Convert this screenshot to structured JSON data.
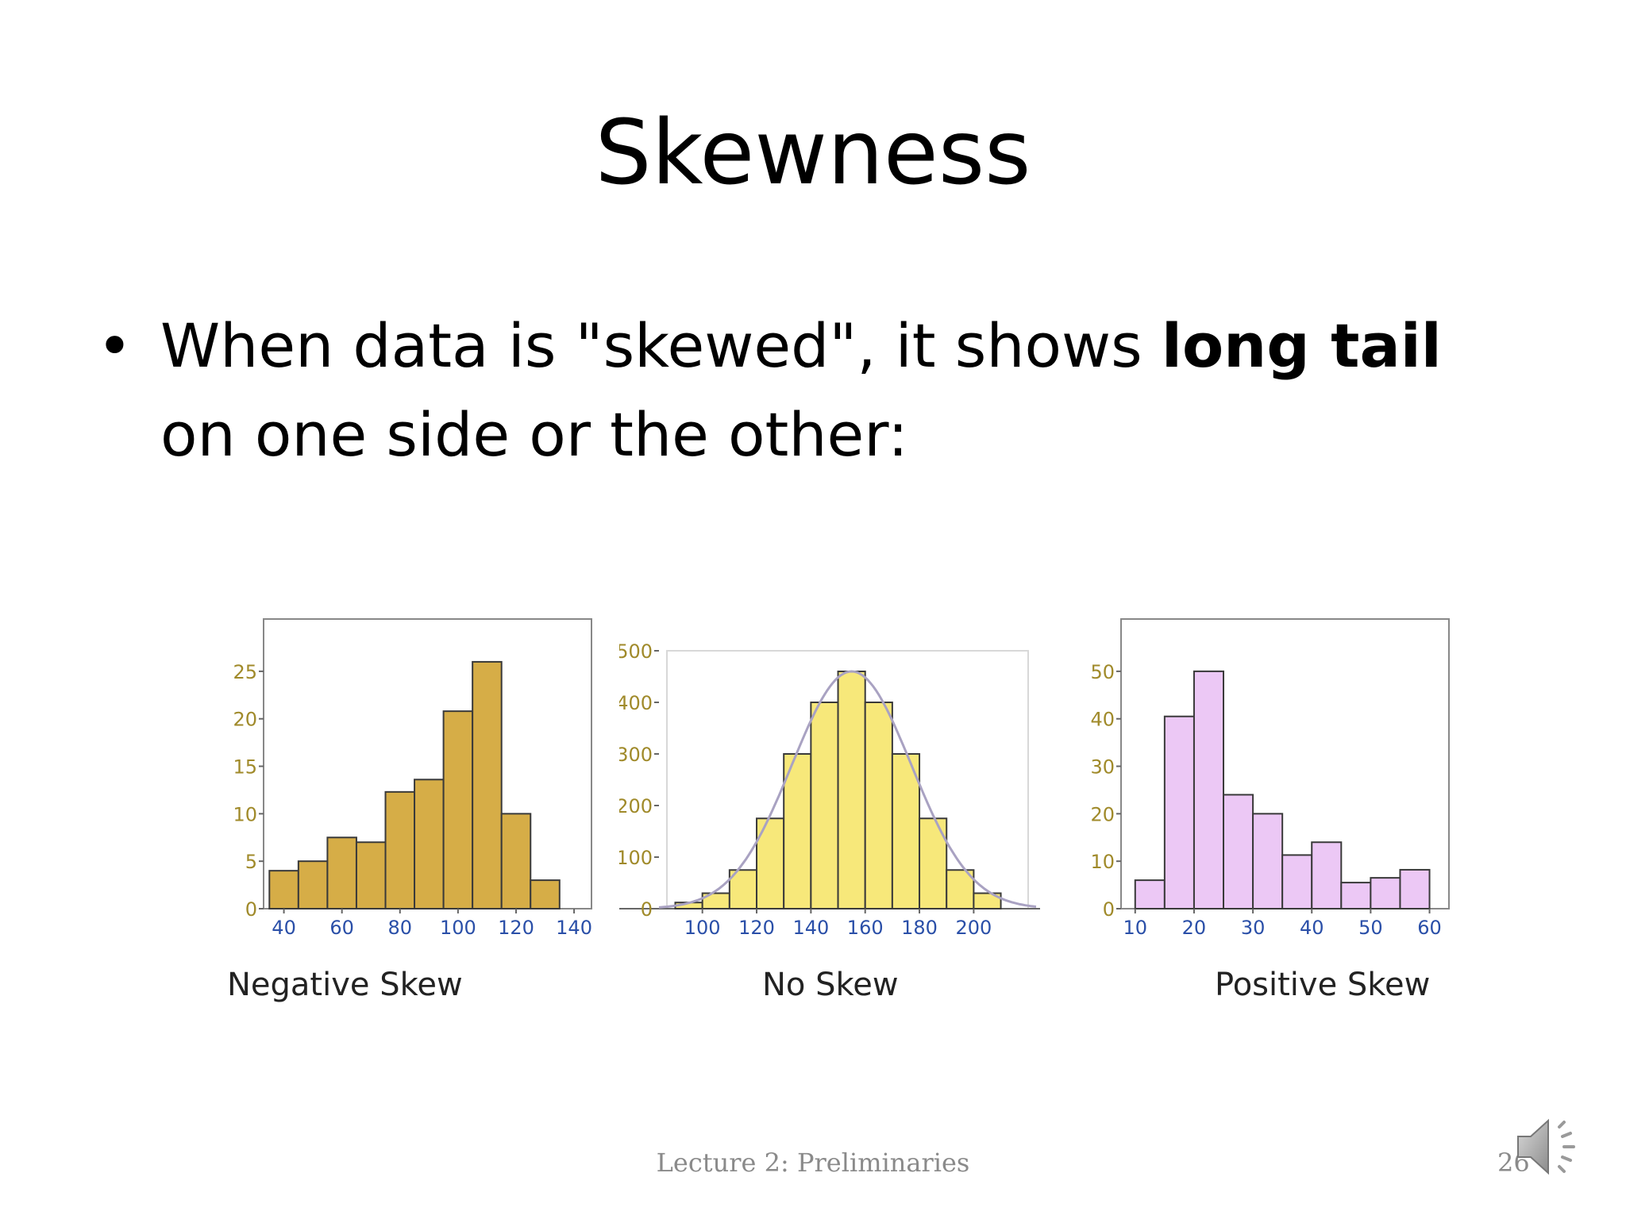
{
  "slide": {
    "title": "Skewness",
    "bullet": {
      "text_before": "When data is \"skewed\", it shows ",
      "bold_text": "long tail",
      "text_after": " on one side or the other:"
    },
    "footer": "Lecture 2: Preliminaries",
    "slide_number": "26",
    "icons": {
      "bullet": "•",
      "audio": "speaker-icon"
    }
  },
  "chart_data": [
    {
      "type": "bar",
      "caption": "Negative Skew",
      "bin_edges": [
        35,
        45,
        55,
        65,
        75,
        85,
        95,
        105,
        115,
        125,
        135,
        145
      ],
      "values": [
        4,
        5,
        7.5,
        7,
        12.3,
        13.6,
        20.8,
        26,
        10,
        3,
        0
      ],
      "x_ticks": [
        40,
        60,
        80,
        100,
        120,
        140
      ],
      "y_ticks": [
        0,
        5,
        10,
        15,
        20,
        25
      ],
      "xlim": [
        33,
        146
      ],
      "ylim": [
        0,
        28
      ],
      "colors": {
        "fill": "#d6ad47",
        "stroke": "#3a3a3a",
        "tick_x": "#2a4fa8",
        "tick_y": "#a08a2a"
      },
      "frame": "box",
      "curve": false
    },
    {
      "type": "bar",
      "caption": "No Skew",
      "bin_edges": [
        90,
        100,
        110,
        120,
        130,
        140,
        150,
        160,
        170,
        180,
        190,
        200,
        210
      ],
      "values": [
        12,
        30,
        75,
        175,
        300,
        400,
        460,
        400,
        300,
        175,
        75,
        30
      ],
      "x_ticks": [
        100,
        120,
        140,
        160,
        180,
        200
      ],
      "y_ticks": [
        0,
        100,
        200,
        300,
        400,
        500
      ],
      "xlim": [
        84,
        223
      ],
      "ylim": [
        0,
        500
      ],
      "colors": {
        "fill": "#f7e87a",
        "fill_overhang": "#f7f200",
        "stroke": "#3a3a3a",
        "curve": "#a9a2c2",
        "tick_x": "#2a4fa8",
        "tick_y": "#a08a2a"
      },
      "frame": "light",
      "curve": true
    },
    {
      "type": "bar",
      "caption": "Positive Skew",
      "bin_edges": [
        10,
        15,
        20,
        25,
        30,
        35,
        40,
        45,
        50,
        55,
        60
      ],
      "values": [
        6,
        40.5,
        50,
        24,
        20,
        11.3,
        14,
        5.5,
        6.5,
        8.2
      ],
      "x_ticks": [
        10,
        20,
        30,
        40,
        50,
        60
      ],
      "y_ticks": [
        0,
        10,
        20,
        30,
        40,
        50
      ],
      "xlim": [
        7.6,
        63.3
      ],
      "ylim": [
        0,
        56
      ],
      "colors": {
        "fill": "#ecc8f5",
        "stroke": "#3a3a3a",
        "tick_x": "#2a4fa8",
        "tick_y": "#a08a2a"
      },
      "frame": "box",
      "curve": false
    }
  ]
}
